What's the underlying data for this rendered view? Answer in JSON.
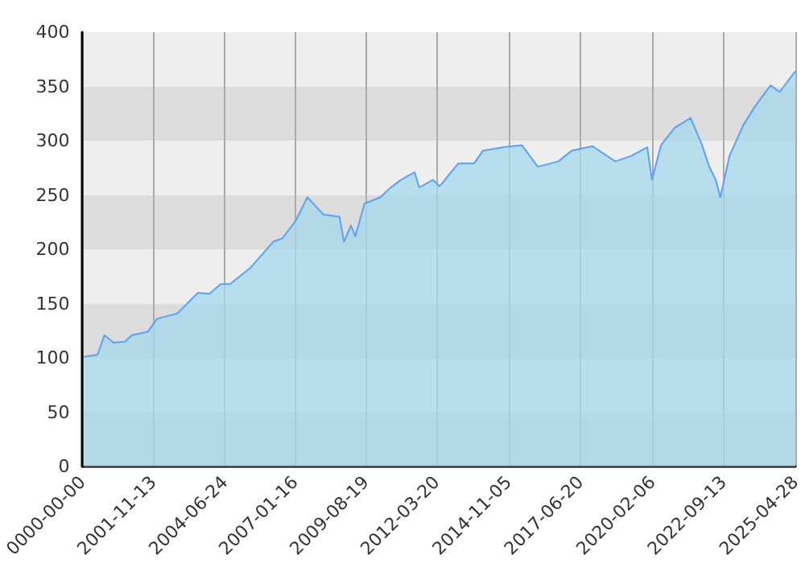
{
  "chart_data": {
    "type": "area",
    "x": [
      "1999-05",
      "1999-11",
      "2000-02",
      "2000-06",
      "2000-11",
      "2001-02",
      "2001-09",
      "2002-01",
      "2002-10",
      "2003-07",
      "2003-12",
      "2004-05",
      "2004-09",
      "2005-06",
      "2006-04",
      "2006-08",
      "2007-02",
      "2007-07",
      "2008-02",
      "2008-09",
      "2008-11",
      "2009-02",
      "2009-04",
      "2009-08",
      "2010-03",
      "2010-07",
      "2010-12",
      "2011-06",
      "2011-08",
      "2012-02",
      "2012-05",
      "2013-01",
      "2013-08",
      "2013-12",
      "2014-09",
      "2015-05",
      "2015-12",
      "2016-09",
      "2017-03",
      "2017-12",
      "2018-10",
      "2019-05",
      "2019-12",
      "2020-02",
      "2020-06",
      "2020-12",
      "2021-07",
      "2021-12",
      "2022-03",
      "2022-06",
      "2022-08",
      "2022-12",
      "2023-06",
      "2023-11",
      "2024-06",
      "2024-10",
      "2025-04-28"
    ],
    "series": [
      {
        "color": "#5aa2f0",
        "values": [
          101,
          103,
          121,
          114,
          115,
          121,
          124,
          136,
          141,
          160,
          159,
          168,
          168,
          183,
          207,
          210,
          227,
          248,
          232,
          230,
          207,
          222,
          212,
          242,
          248,
          256,
          264,
          271,
          257,
          264,
          258,
          279,
          279,
          291,
          294,
          296,
          276,
          281,
          291,
          295,
          281,
          286,
          294,
          264,
          296,
          312,
          321,
          296,
          277,
          264,
          248,
          286,
          314,
          331,
          351,
          345,
          364
        ]
      }
    ],
    "xlim": [
      "1999-04-13",
      "2025-04-28"
    ],
    "xticks": [
      {
        "value": "1999-04-13",
        "label": "0000-00-00"
      },
      "2001-11-13",
      "2004-06-24",
      "2007-01-16",
      "2009-08-19",
      "2012-03-20",
      "2014-11-05",
      "2017-06-20",
      "2020-02-06",
      "2022-09-13",
      "2025-04-28"
    ],
    "ylim": [
      0,
      400
    ],
    "yticks": [
      0,
      50,
      100,
      150,
      200,
      250,
      300,
      350,
      400
    ],
    "grid": "x"
  }
}
